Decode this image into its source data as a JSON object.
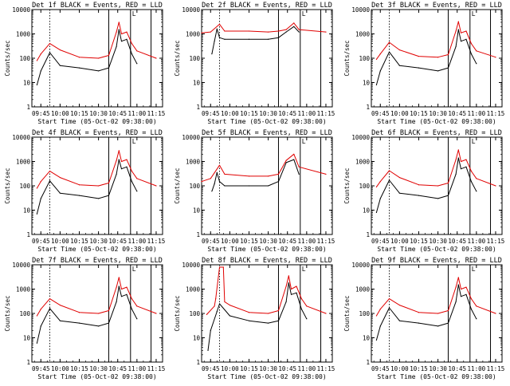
{
  "figure": {
    "title_template": "Det {det} BLACK = Events, RED = LLD",
    "ylabel": "Counts/sec",
    "xlabel": "Start Time (05-Oct-02 09:38:00)",
    "marker_label": "L",
    "colors": {
      "events": "#000000",
      "lld": "#e00000",
      "axes": "#000000"
    }
  },
  "chart_data": [
    {
      "type": "line",
      "det": "1f",
      "title": "Det 1f BLACK = Events, RED = LLD",
      "xlabel": "Start Time (05-Oct-02 09:38:00)",
      "ylabel": "Counts/sec",
      "yscale": "log",
      "xlim": [
        "09:38",
        "11:20"
      ],
      "ylim": [
        1,
        10000
      ],
      "x_ticks": [
        "09:45",
        "10:00",
        "10:15",
        "10:30",
        "10:45",
        "11:00",
        "11:15"
      ],
      "y_ticks": [
        "1",
        "10",
        "100",
        "1000",
        "10000"
      ],
      "series": [
        {
          "name": "Events",
          "color": "#000000",
          "x": [
            "09:42",
            "09:45",
            "09:52",
            "10:00",
            "10:15",
            "10:30",
            "10:38",
            "10:44",
            "10:46",
            "10:48",
            "10:52",
            "10:56",
            "11:00"
          ],
          "y": [
            8,
            30,
            170,
            50,
            40,
            30,
            40,
            300,
            1500,
            500,
            600,
            150,
            60
          ]
        },
        {
          "name": "LLD",
          "color": "#e00000",
          "x": [
            "09:42",
            "09:45",
            "09:52",
            "10:00",
            "10:15",
            "10:30",
            "10:38",
            "10:44",
            "10:46",
            "10:48",
            "10:52",
            "10:56",
            "11:00",
            "11:15"
          ],
          "y": [
            80,
            150,
            400,
            220,
            110,
            100,
            130,
            1200,
            3000,
            1000,
            1200,
            400,
            200,
            100
          ]
        }
      ],
      "vlines": {
        "dotted": [
          "09:52"
        ],
        "solid": [
          "10:38",
          "10:55",
          "11:11"
        ]
      }
    },
    {
      "type": "line",
      "det": "2f",
      "title": "Det 2f BLACK = Events, RED = LLD",
      "xlabel": "Start Time (05-Oct-02 09:38:00)",
      "ylabel": "Counts/sec",
      "yscale": "log",
      "xlim": [
        "09:38",
        "11:20"
      ],
      "ylim": [
        1,
        10000
      ],
      "x_ticks": [
        "09:45",
        "10:00",
        "10:15",
        "10:30",
        "10:45",
        "11:00",
        "11:15"
      ],
      "y_ticks": [
        "1",
        "10",
        "100",
        "1000",
        "10000"
      ],
      "series": [
        {
          "name": "Events",
          "color": "#000000",
          "x": [
            "09:46",
            "09:48",
            "09:50",
            "09:52",
            "09:56",
            "10:15",
            "10:30",
            "10:38",
            "10:44",
            "10:50",
            "10:54"
          ],
          "y": [
            150,
            500,
            1600,
            700,
            600,
            600,
            600,
            700,
            1200,
            2000,
            1200
          ]
        },
        {
          "name": "LLD",
          "color": "#e00000",
          "x": [
            "09:38",
            "09:45",
            "09:52",
            "09:56",
            "10:15",
            "10:30",
            "10:38",
            "10:44",
            "10:50",
            "10:54",
            "11:15"
          ],
          "y": [
            1100,
            1200,
            2500,
            1300,
            1300,
            1200,
            1300,
            1500,
            2800,
            1500,
            1200
          ]
        }
      ],
      "vlines": {
        "dotted": [
          "09:52"
        ],
        "solid": [
          "10:38",
          "10:55",
          "11:11"
        ]
      }
    },
    {
      "type": "line",
      "det": "3f",
      "title": "Det 3f BLACK = Events, RED = LLD",
      "xlabel": "Start Time (05-Oct-02 09:38:00)",
      "ylabel": "Counts/sec",
      "yscale": "log",
      "xlim": [
        "09:38",
        "11:20"
      ],
      "ylim": [
        1,
        10000
      ],
      "x_ticks": [
        "09:45",
        "10:00",
        "10:15",
        "10:30",
        "10:45",
        "11:00",
        "11:15"
      ],
      "y_ticks": [
        "1",
        "10",
        "100",
        "1000",
        "10000"
      ],
      "series": [
        {
          "name": "Events",
          "color": "#000000",
          "x": [
            "09:42",
            "09:45",
            "09:52",
            "10:00",
            "10:15",
            "10:30",
            "10:38",
            "10:44",
            "10:46",
            "10:48",
            "10:52",
            "10:56",
            "11:00"
          ],
          "y": [
            8,
            30,
            180,
            50,
            40,
            30,
            40,
            300,
            1500,
            500,
            600,
            150,
            60
          ]
        },
        {
          "name": "LLD",
          "color": "#e00000",
          "x": [
            "09:42",
            "09:45",
            "09:52",
            "10:00",
            "10:15",
            "10:30",
            "10:38",
            "10:44",
            "10:46",
            "10:48",
            "10:52",
            "10:56",
            "11:00",
            "11:15"
          ],
          "y": [
            90,
            150,
            450,
            220,
            120,
            110,
            140,
            1300,
            3200,
            1100,
            1300,
            400,
            200,
            110
          ]
        }
      ],
      "vlines": {
        "dotted": [
          "09:52"
        ],
        "solid": [
          "10:38",
          "10:55",
          "11:11"
        ]
      }
    },
    {
      "type": "line",
      "det": "4f",
      "title": "Det 4f BLACK = Events, RED = LLD",
      "xlabel": "Start Time (05-Oct-02 09:38:00)",
      "ylabel": "Counts/sec",
      "yscale": "log",
      "xlim": [
        "09:38",
        "11:20"
      ],
      "ylim": [
        1,
        10000
      ],
      "x_ticks": [
        "09:45",
        "10:00",
        "10:15",
        "10:30",
        "10:45",
        "11:00",
        "11:15"
      ],
      "y_ticks": [
        "1",
        "10",
        "100",
        "1000",
        "10000"
      ],
      "series": [
        {
          "name": "Events",
          "color": "#000000",
          "x": [
            "09:42",
            "09:45",
            "09:52",
            "10:00",
            "10:15",
            "10:30",
            "10:38",
            "10:44",
            "10:46",
            "10:48",
            "10:52",
            "10:56",
            "11:00"
          ],
          "y": [
            7,
            30,
            160,
            50,
            40,
            30,
            40,
            300,
            1200,
            500,
            600,
            150,
            60
          ]
        },
        {
          "name": "LLD",
          "color": "#e00000",
          "x": [
            "09:42",
            "09:45",
            "09:52",
            "10:00",
            "10:15",
            "10:30",
            "10:38",
            "10:44",
            "10:46",
            "10:48",
            "10:52",
            "10:56",
            "11:00",
            "11:15"
          ],
          "y": [
            80,
            150,
            400,
            220,
            110,
            100,
            130,
            1100,
            2800,
            1000,
            1200,
            400,
            200,
            100
          ]
        }
      ],
      "vlines": {
        "dotted": [
          "09:52"
        ],
        "solid": [
          "10:38",
          "10:55",
          "11:11"
        ]
      }
    },
    {
      "type": "line",
      "det": "5f",
      "title": "Det 5f BLACK = Events, RED = LLD",
      "xlabel": "Start Time (05-Oct-02 09:38:00)",
      "ylabel": "Counts/sec",
      "yscale": "log",
      "xlim": [
        "09:38",
        "11:20"
      ],
      "ylim": [
        1,
        10000
      ],
      "x_ticks": [
        "09:45",
        "10:00",
        "10:15",
        "10:30",
        "10:45",
        "11:00",
        "11:15"
      ],
      "y_ticks": [
        "1",
        "10",
        "100",
        "1000",
        "10000"
      ],
      "series": [
        {
          "name": "Events",
          "color": "#000000",
          "x": [
            "09:46",
            "09:48",
            "09:50",
            "09:52",
            "09:56",
            "10:15",
            "10:30",
            "10:38",
            "10:44",
            "10:50",
            "10:54"
          ],
          "y": [
            60,
            120,
            350,
            150,
            100,
            100,
            100,
            150,
            900,
            1200,
            300
          ]
        },
        {
          "name": "LLD",
          "color": "#e00000",
          "x": [
            "09:38",
            "09:45",
            "09:52",
            "09:56",
            "10:15",
            "10:30",
            "10:38",
            "10:44",
            "10:50",
            "10:54",
            "11:15"
          ],
          "y": [
            150,
            200,
            700,
            300,
            250,
            250,
            300,
            1100,
            2000,
            600,
            300
          ]
        }
      ],
      "vlines": {
        "dotted": [
          "09:52"
        ],
        "solid": [
          "10:38",
          "10:55",
          "11:11"
        ]
      }
    },
    {
      "type": "line",
      "det": "6f",
      "title": "Det 6f BLACK = Events, RED = LLD",
      "xlabel": "Start Time (05-Oct-02 09:38:00)",
      "ylabel": "Counts/sec",
      "yscale": "log",
      "xlim": [
        "09:38",
        "11:20"
      ],
      "ylim": [
        1,
        10000
      ],
      "x_ticks": [
        "09:45",
        "10:00",
        "10:15",
        "10:30",
        "10:45",
        "11:00",
        "11:15"
      ],
      "y_ticks": [
        "1",
        "10",
        "100",
        "1000",
        "10000"
      ],
      "series": [
        {
          "name": "Events",
          "color": "#000000",
          "x": [
            "09:42",
            "09:45",
            "09:52",
            "10:00",
            "10:15",
            "10:30",
            "10:38",
            "10:44",
            "10:46",
            "10:48",
            "10:52",
            "10:56",
            "11:00"
          ],
          "y": [
            8,
            30,
            170,
            50,
            40,
            30,
            40,
            300,
            1400,
            500,
            600,
            150,
            60
          ]
        },
        {
          "name": "LLD",
          "color": "#e00000",
          "x": [
            "09:42",
            "09:45",
            "09:52",
            "10:00",
            "10:15",
            "10:30",
            "10:38",
            "10:44",
            "10:46",
            "10:48",
            "10:52",
            "10:56",
            "11:00",
            "11:15"
          ],
          "y": [
            90,
            150,
            420,
            220,
            110,
            100,
            130,
            1200,
            3000,
            1000,
            1200,
            400,
            200,
            100
          ]
        }
      ],
      "vlines": {
        "dotted": [
          "09:52"
        ],
        "solid": [
          "10:38",
          "10:55",
          "11:11"
        ]
      }
    },
    {
      "type": "line",
      "det": "7f",
      "title": "Det 7f BLACK = Events, RED = LLD",
      "xlabel": "Start Time (05-Oct-02 09:38:00)",
      "ylabel": "Counts/sec",
      "yscale": "log",
      "xlim": [
        "09:38",
        "11:20"
      ],
      "ylim": [
        1,
        10000
      ],
      "x_ticks": [
        "09:45",
        "10:00",
        "10:15",
        "10:30",
        "10:45",
        "11:00",
        "11:15"
      ],
      "y_ticks": [
        "1",
        "10",
        "100",
        "1000",
        "10000"
      ],
      "series": [
        {
          "name": "Events",
          "color": "#000000",
          "x": [
            "09:42",
            "09:45",
            "09:52",
            "10:00",
            "10:15",
            "10:30",
            "10:38",
            "10:44",
            "10:46",
            "10:48",
            "10:52",
            "10:56",
            "11:00"
          ],
          "y": [
            6,
            30,
            160,
            50,
            40,
            30,
            40,
            300,
            1300,
            500,
            600,
            150,
            60
          ]
        },
        {
          "name": "LLD",
          "color": "#e00000",
          "x": [
            "09:42",
            "09:45",
            "09:52",
            "10:00",
            "10:15",
            "10:30",
            "10:38",
            "10:44",
            "10:46",
            "10:48",
            "10:52",
            "10:56",
            "11:00",
            "11:15"
          ],
          "y": [
            80,
            150,
            400,
            220,
            110,
            100,
            130,
            1200,
            3000,
            1000,
            1200,
            400,
            200,
            100
          ]
        }
      ],
      "vlines": {
        "dotted": [
          "09:52"
        ],
        "solid": [
          "10:38",
          "10:55",
          "11:11"
        ]
      }
    },
    {
      "type": "line",
      "det": "8f",
      "title": "Det 8f BLACK = Events, RED = LLD",
      "xlabel": "Start Time (05-Oct-02 09:38:00)",
      "ylabel": "Counts/sec",
      "yscale": "log",
      "xlim": [
        "09:38",
        "11:20"
      ],
      "ylim": [
        1,
        10000
      ],
      "x_ticks": [
        "09:45",
        "10:00",
        "10:15",
        "10:30",
        "10:45",
        "11:00",
        "11:15"
      ],
      "y_ticks": [
        "1",
        "10",
        "100",
        "1000",
        "10000"
      ],
      "series": [
        {
          "name": "Events",
          "color": "#000000",
          "x": [
            "09:43",
            "09:45",
            "09:50",
            "09:52",
            "10:00",
            "10:15",
            "10:30",
            "10:38",
            "10:44",
            "10:46",
            "10:48",
            "10:52",
            "10:56",
            "11:00"
          ],
          "y": [
            3,
            20,
            120,
            250,
            80,
            50,
            40,
            50,
            300,
            1800,
            600,
            700,
            150,
            60
          ]
        },
        {
          "name": "LLD",
          "color": "#e00000",
          "x": [
            "09:42",
            "09:48",
            "09:49",
            "09:52",
            "09:55",
            "09:56",
            "10:00",
            "10:15",
            "10:30",
            "10:38",
            "10:44",
            "10:46",
            "10:48",
            "10:52",
            "10:56",
            "11:00",
            "11:15"
          ],
          "y": [
            90,
            200,
            400,
            8000,
            8000,
            300,
            220,
            110,
            100,
            130,
            1300,
            3500,
            1000,
            1300,
            400,
            200,
            100
          ]
        }
      ],
      "vlines": {
        "dotted": [
          "09:52"
        ],
        "solid": [
          "10:38",
          "10:55",
          "11:11"
        ]
      }
    },
    {
      "type": "line",
      "det": "9f",
      "title": "Det 9f BLACK = Events, RED = LLD",
      "xlabel": "Start Time (05-Oct-02 09:38:00)",
      "ylabel": "Counts/sec",
      "yscale": "log",
      "xlim": [
        "09:38",
        "11:20"
      ],
      "ylim": [
        1,
        10000
      ],
      "x_ticks": [
        "09:45",
        "10:00",
        "10:15",
        "10:30",
        "10:45",
        "11:00",
        "11:15"
      ],
      "y_ticks": [
        "1",
        "10",
        "100",
        "1000",
        "10000"
      ],
      "series": [
        {
          "name": "Events",
          "color": "#000000",
          "x": [
            "09:42",
            "09:45",
            "09:52",
            "10:00",
            "10:15",
            "10:30",
            "10:38",
            "10:44",
            "10:46",
            "10:48",
            "10:52",
            "10:56",
            "11:00"
          ],
          "y": [
            8,
            30,
            170,
            50,
            40,
            30,
            40,
            300,
            1500,
            500,
            600,
            150,
            60
          ]
        },
        {
          "name": "LLD",
          "color": "#e00000",
          "x": [
            "09:42",
            "09:45",
            "09:52",
            "10:00",
            "10:15",
            "10:30",
            "10:38",
            "10:44",
            "10:46",
            "10:48",
            "10:52",
            "10:56",
            "11:00",
            "11:15"
          ],
          "y": [
            80,
            150,
            400,
            220,
            110,
            100,
            130,
            1200,
            3000,
            1000,
            1200,
            400,
            200,
            100
          ]
        }
      ],
      "vlines": {
        "dotted": [
          "09:52"
        ],
        "solid": [
          "10:38",
          "10:55",
          "11:11"
        ]
      }
    }
  ]
}
